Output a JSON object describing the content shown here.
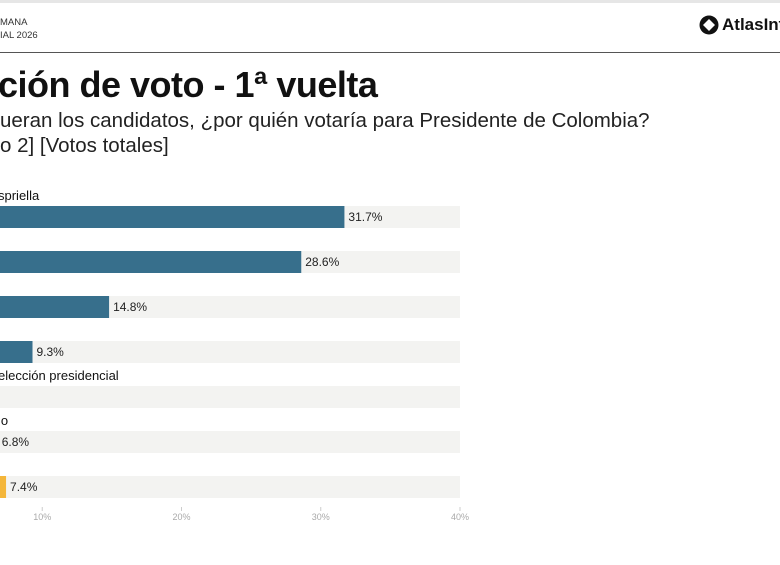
{
  "header": {
    "left_line1": "MANA",
    "left_line2": "IAL 2026",
    "logo_text": "AtlasInt"
  },
  "title": "ción de voto - 1ª vuelta",
  "subtitle_line1": "ueran los candidatos, ¿por quién votaría para Presidente de Colombia?",
  "subtitle_line2": "o 2] [Votos totales]",
  "colors": {
    "primary_bar": "#376f8c",
    "highlight_bar": "#f4b63a",
    "track": "#f3f3f1"
  },
  "chart_data": {
    "type": "bar",
    "orientation": "horizontal",
    "categories": [
      "spriella",
      "",
      "",
      "",
      "elección presidencial",
      "lo",
      ""
    ],
    "values": [
      31.7,
      28.6,
      14.8,
      9.3,
      null,
      6.8,
      7.4
    ],
    "value_labels": [
      "31.7%",
      "28.6%",
      "14.8%",
      "9.3%",
      "",
      "6.8%",
      "7.4%"
    ],
    "bar_colors": [
      "#376f8c",
      "#376f8c",
      "#376f8c",
      "#376f8c",
      "#376f8c",
      "#376f8c",
      "#f4b63a"
    ],
    "xlim": [
      0,
      40
    ],
    "xticks": [
      10,
      20,
      30,
      40
    ],
    "xtick_labels": [
      "10%",
      "20%",
      "30%",
      "40%"
    ],
    "grid": false
  }
}
